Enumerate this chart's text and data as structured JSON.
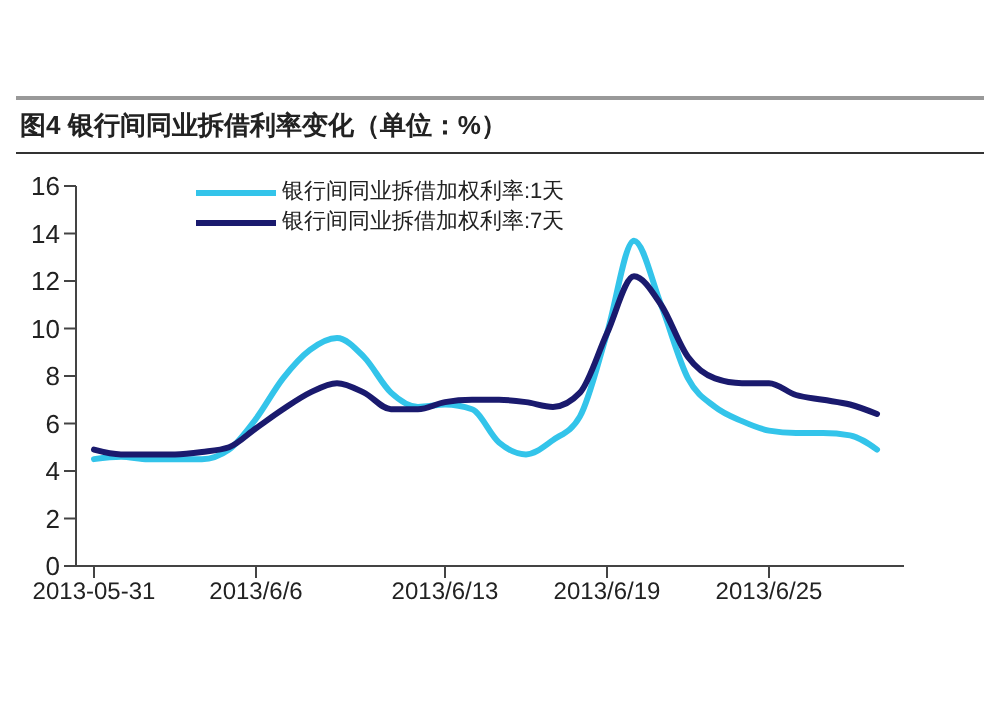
{
  "chart_data": {
    "type": "line",
    "title": "图4  银行间同业拆借利率变化（单位：%）",
    "x": [
      "2013-05-31",
      "2013-06-01",
      "2013-06-02",
      "2013-06-03",
      "2013-06-04",
      "2013-06-05",
      "2013-06-06",
      "2013-06-07",
      "2013-06-08",
      "2013-06-09",
      "2013-06-10",
      "2013-06-11",
      "2013-06-12",
      "2013-06-13",
      "2013-06-14",
      "2013-06-15",
      "2013-06-16",
      "2013-06-17",
      "2013-06-18",
      "2013-06-19",
      "2013-06-20",
      "2013-06-21",
      "2013-06-22",
      "2013-06-23",
      "2013-06-24",
      "2013-06-25",
      "2013-06-26",
      "2013-06-27",
      "2013-06-28",
      "2013-06-29"
    ],
    "series": [
      {
        "name": "银行间同业拆借加权利率:1天",
        "color": "#33c4ea",
        "values": [
          4.5,
          4.6,
          4.5,
          4.5,
          4.5,
          4.9,
          6.2,
          7.9,
          9.1,
          9.6,
          8.8,
          7.3,
          6.7,
          6.8,
          6.6,
          5.2,
          4.7,
          5.3,
          6.3,
          9.8,
          13.7,
          11.0,
          7.9,
          6.7,
          6.1,
          5.7,
          5.6,
          5.6,
          5.5,
          4.9
        ]
      },
      {
        "name": "银行间同业拆借加权利率:7天",
        "color": "#1a1a6e",
        "values": [
          4.9,
          4.7,
          4.7,
          4.7,
          4.8,
          5.0,
          5.8,
          6.6,
          7.3,
          7.7,
          7.3,
          6.6,
          6.6,
          6.9,
          7.0,
          7.0,
          6.9,
          6.7,
          7.3,
          9.8,
          12.2,
          11.0,
          8.8,
          7.9,
          7.7,
          7.7,
          7.2,
          7.0,
          6.8,
          6.4
        ]
      }
    ],
    "xlim": [
      "2013-05-30T08:00",
      "2013-06-30"
    ],
    "xticks": [
      {
        "value": "2013-05-31",
        "label": "2013-05-31"
      },
      {
        "value": "2013-06-06",
        "label": "2013/6/6"
      },
      {
        "value": "2013-06-13",
        "label": "2013/6/13"
      },
      {
        "value": "2013-06-19",
        "label": "2013/6/19"
      },
      {
        "value": "2013-06-25",
        "label": "2013/6/25"
      }
    ],
    "ylim": [
      0,
      16
    ],
    "yticks": [
      0,
      2,
      4,
      6,
      8,
      10,
      12,
      14,
      16
    ],
    "grid": false,
    "legend": "top"
  }
}
